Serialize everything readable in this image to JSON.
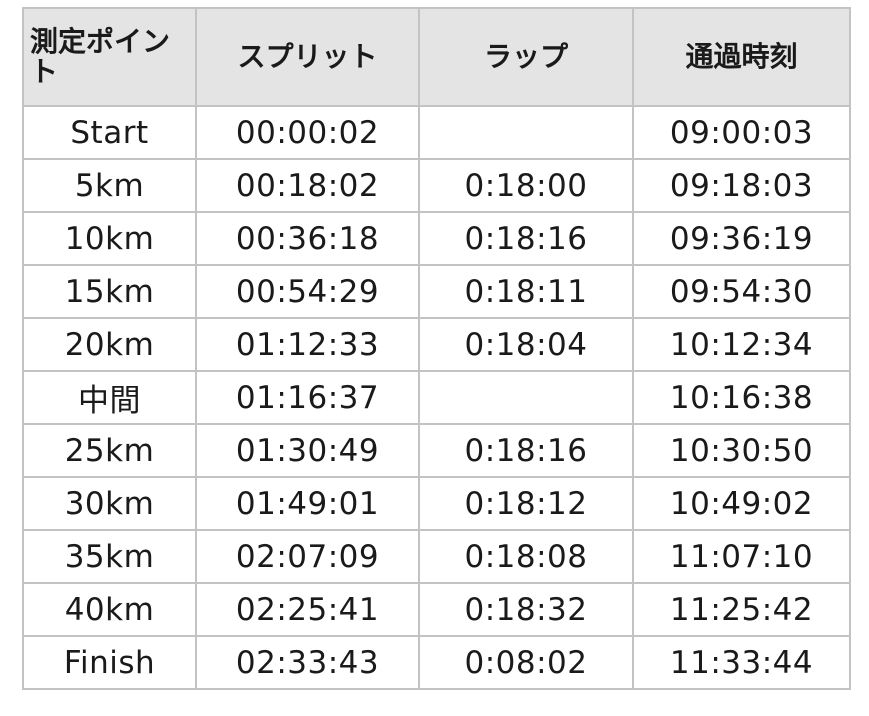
{
  "table": {
    "headers": [
      "測定ポイント",
      "スプリット",
      "ラップ",
      "通過時刻"
    ],
    "rows": [
      [
        "Start",
        "00:00:02",
        "",
        "09:00:03"
      ],
      [
        "5km",
        "00:18:02",
        "0:18:00",
        "09:18:03"
      ],
      [
        "10km",
        "00:36:18",
        "0:18:16",
        "09:36:19"
      ],
      [
        "15km",
        "00:54:29",
        "0:18:11",
        "09:54:30"
      ],
      [
        "20km",
        "01:12:33",
        "0:18:04",
        "10:12:34"
      ],
      [
        "中間",
        "01:16:37",
        "",
        "10:16:38"
      ],
      [
        "25km",
        "01:30:49",
        "0:18:16",
        "10:30:50"
      ],
      [
        "30km",
        "01:49:01",
        "0:18:12",
        "10:49:02"
      ],
      [
        "35km",
        "02:07:09",
        "0:18:08",
        "11:07:10"
      ],
      [
        "40km",
        "02:25:41",
        "0:18:32",
        "11:25:42"
      ],
      [
        "Finish",
        "02:33:43",
        "0:08:02",
        "11:33:44"
      ]
    ]
  },
  "colors": {
    "header_bg": "#e4e4e4",
    "border": "#c3c3c3",
    "text": "#1a1a1a",
    "background": "#ffffff"
  }
}
